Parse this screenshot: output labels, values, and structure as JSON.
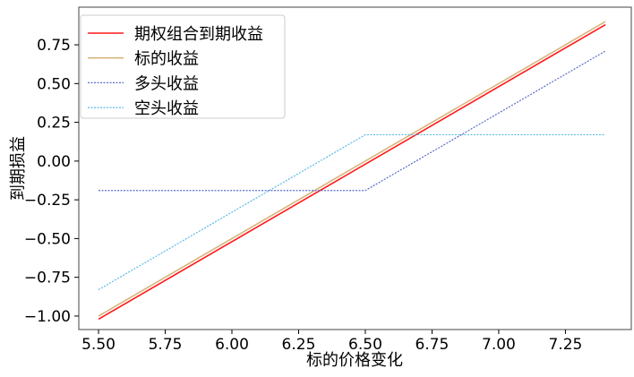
{
  "chart_data": {
    "type": "line",
    "title": "",
    "xlabel": "标的价格变化",
    "ylabel": "到期损益",
    "xlim": [
      5.426,
      7.497
    ],
    "ylim": [
      -1.087,
      0.993
    ],
    "xticks": [
      5.5,
      5.75,
      6.0,
      6.25,
      6.5,
      6.75,
      7.0,
      7.25
    ],
    "xtick_labels": [
      "5.50",
      "5.75",
      "6.00",
      "6.25",
      "6.50",
      "6.75",
      "7.00",
      "7.25"
    ],
    "yticks": [
      0.75,
      0.5,
      0.25,
      0.0,
      -0.25,
      -0.5,
      -0.75,
      -1.0
    ],
    "ytick_labels": [
      "0.75",
      "0.50",
      "0.25",
      "0.00",
      "−0.25",
      "−0.50",
      "−0.75",
      "−1.00"
    ],
    "grid": false,
    "legend_position": "top-left",
    "x": [
      5.5,
      6.5,
      7.4
    ],
    "series": [
      {
        "name": "期权组合到期收益",
        "values": [
          -1.02,
          -0.02,
          0.88
        ],
        "color": "#ff1a1a",
        "style": "solid"
      },
      {
        "name": "标的收益",
        "values": [
          -1.0,
          0.0,
          0.9
        ],
        "color": "#d9b47c",
        "style": "solid"
      },
      {
        "name": "多头收益",
        "values": [
          -0.19,
          -0.19,
          0.71
        ],
        "color": "#5a6cc8",
        "style": "dotted"
      },
      {
        "name": "空头收益",
        "values": [
          -0.83,
          0.17,
          0.17
        ],
        "color": "#5ab8e8",
        "style": "dotted"
      }
    ]
  }
}
